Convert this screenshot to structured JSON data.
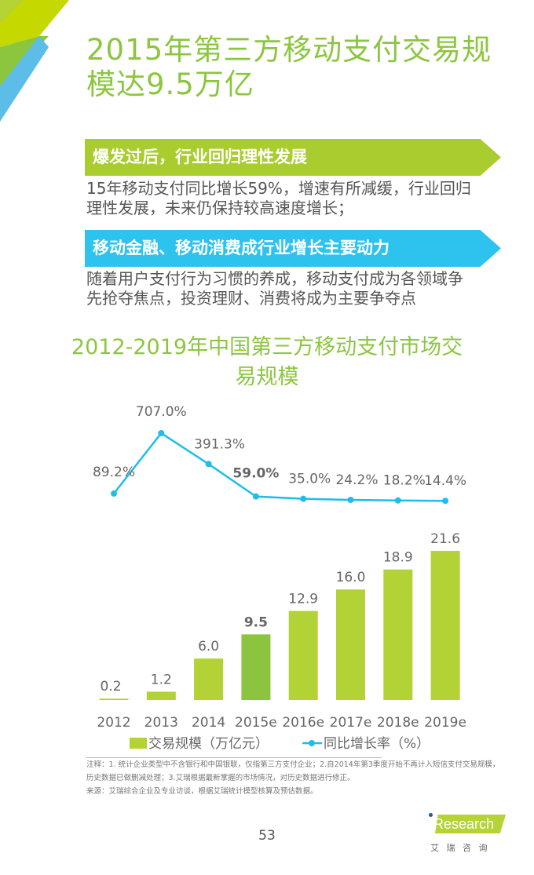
{
  "title_lines": [
    "2015年第三方移动支付交易规",
    "模达9.5万亿"
  ],
  "sections": [
    {
      "heading": "爆发过后，行业回归理性发展",
      "text_lines": [
        "15年移动支付同比增长59%，增速有所减缓，行业回归",
        "理性发展，未来仍保持较高速度增长；"
      ]
    },
    {
      "heading": "移动金融、移动消费成行业增长主要动力",
      "text_lines": [
        "随着用户支付行为习惯的养成，移动支付成为各领域争",
        "先抢夺焦点，投资理财、消费将成为主要争夺点"
      ]
    }
  ],
  "chart_data": {
    "type": "bar+line",
    "title": "2012-2019年中国第三方移动支付市场交易规模",
    "title_lines": [
      "2012-2019年中国第三方移动支付市场交",
      "易规模"
    ],
    "categories": [
      "2012",
      "2013",
      "2014",
      "2015e",
      "2016e",
      "2017e",
      "2018e",
      "2019e"
    ],
    "series": [
      {
        "name": "交易规模（万亿元）",
        "type": "bar",
        "values": [
          0.2,
          1.2,
          6.0,
          9.5,
          12.9,
          16.0,
          18.9,
          21.6
        ],
        "labels": [
          "0.2",
          "1.2",
          "6.0",
          "9.5",
          "12.9",
          "16.0",
          "18.9",
          "21.6"
        ],
        "color": "#b2d235",
        "highlight_color": "#8bc53f",
        "highlight_index": 3
      },
      {
        "name": "同比增长率（%）",
        "type": "line",
        "values": [
          89.2,
          707.0,
          391.3,
          59.0,
          35.0,
          24.2,
          18.2,
          14.4
        ],
        "labels": [
          "89.2%",
          "707.0%",
          "391.3%",
          "59.0%",
          "35.0%",
          "24.2%",
          "18.2%",
          "14.4%"
        ],
        "color": "#1fbde9"
      }
    ],
    "legend_position": "bottom",
    "grid": false
  },
  "notes": [
    "注释：1. 统计企业类型中不含银行和中国银联，仅指第三方支付企业；2.自2014年第3季度开始不再计入短信支付交易规模，",
    "历史数据已做删减处理；3.艾瑞根据最新掌握的市场情况，对历史数据进行修正。",
    "来源：艾瑞综合企业及专业访谈，根据艾瑞统计模型核算及预估数据。"
  ],
  "page_number": "53",
  "logo": {
    "text": "iResearch",
    "subtext": "艾 瑞 咨 询"
  }
}
